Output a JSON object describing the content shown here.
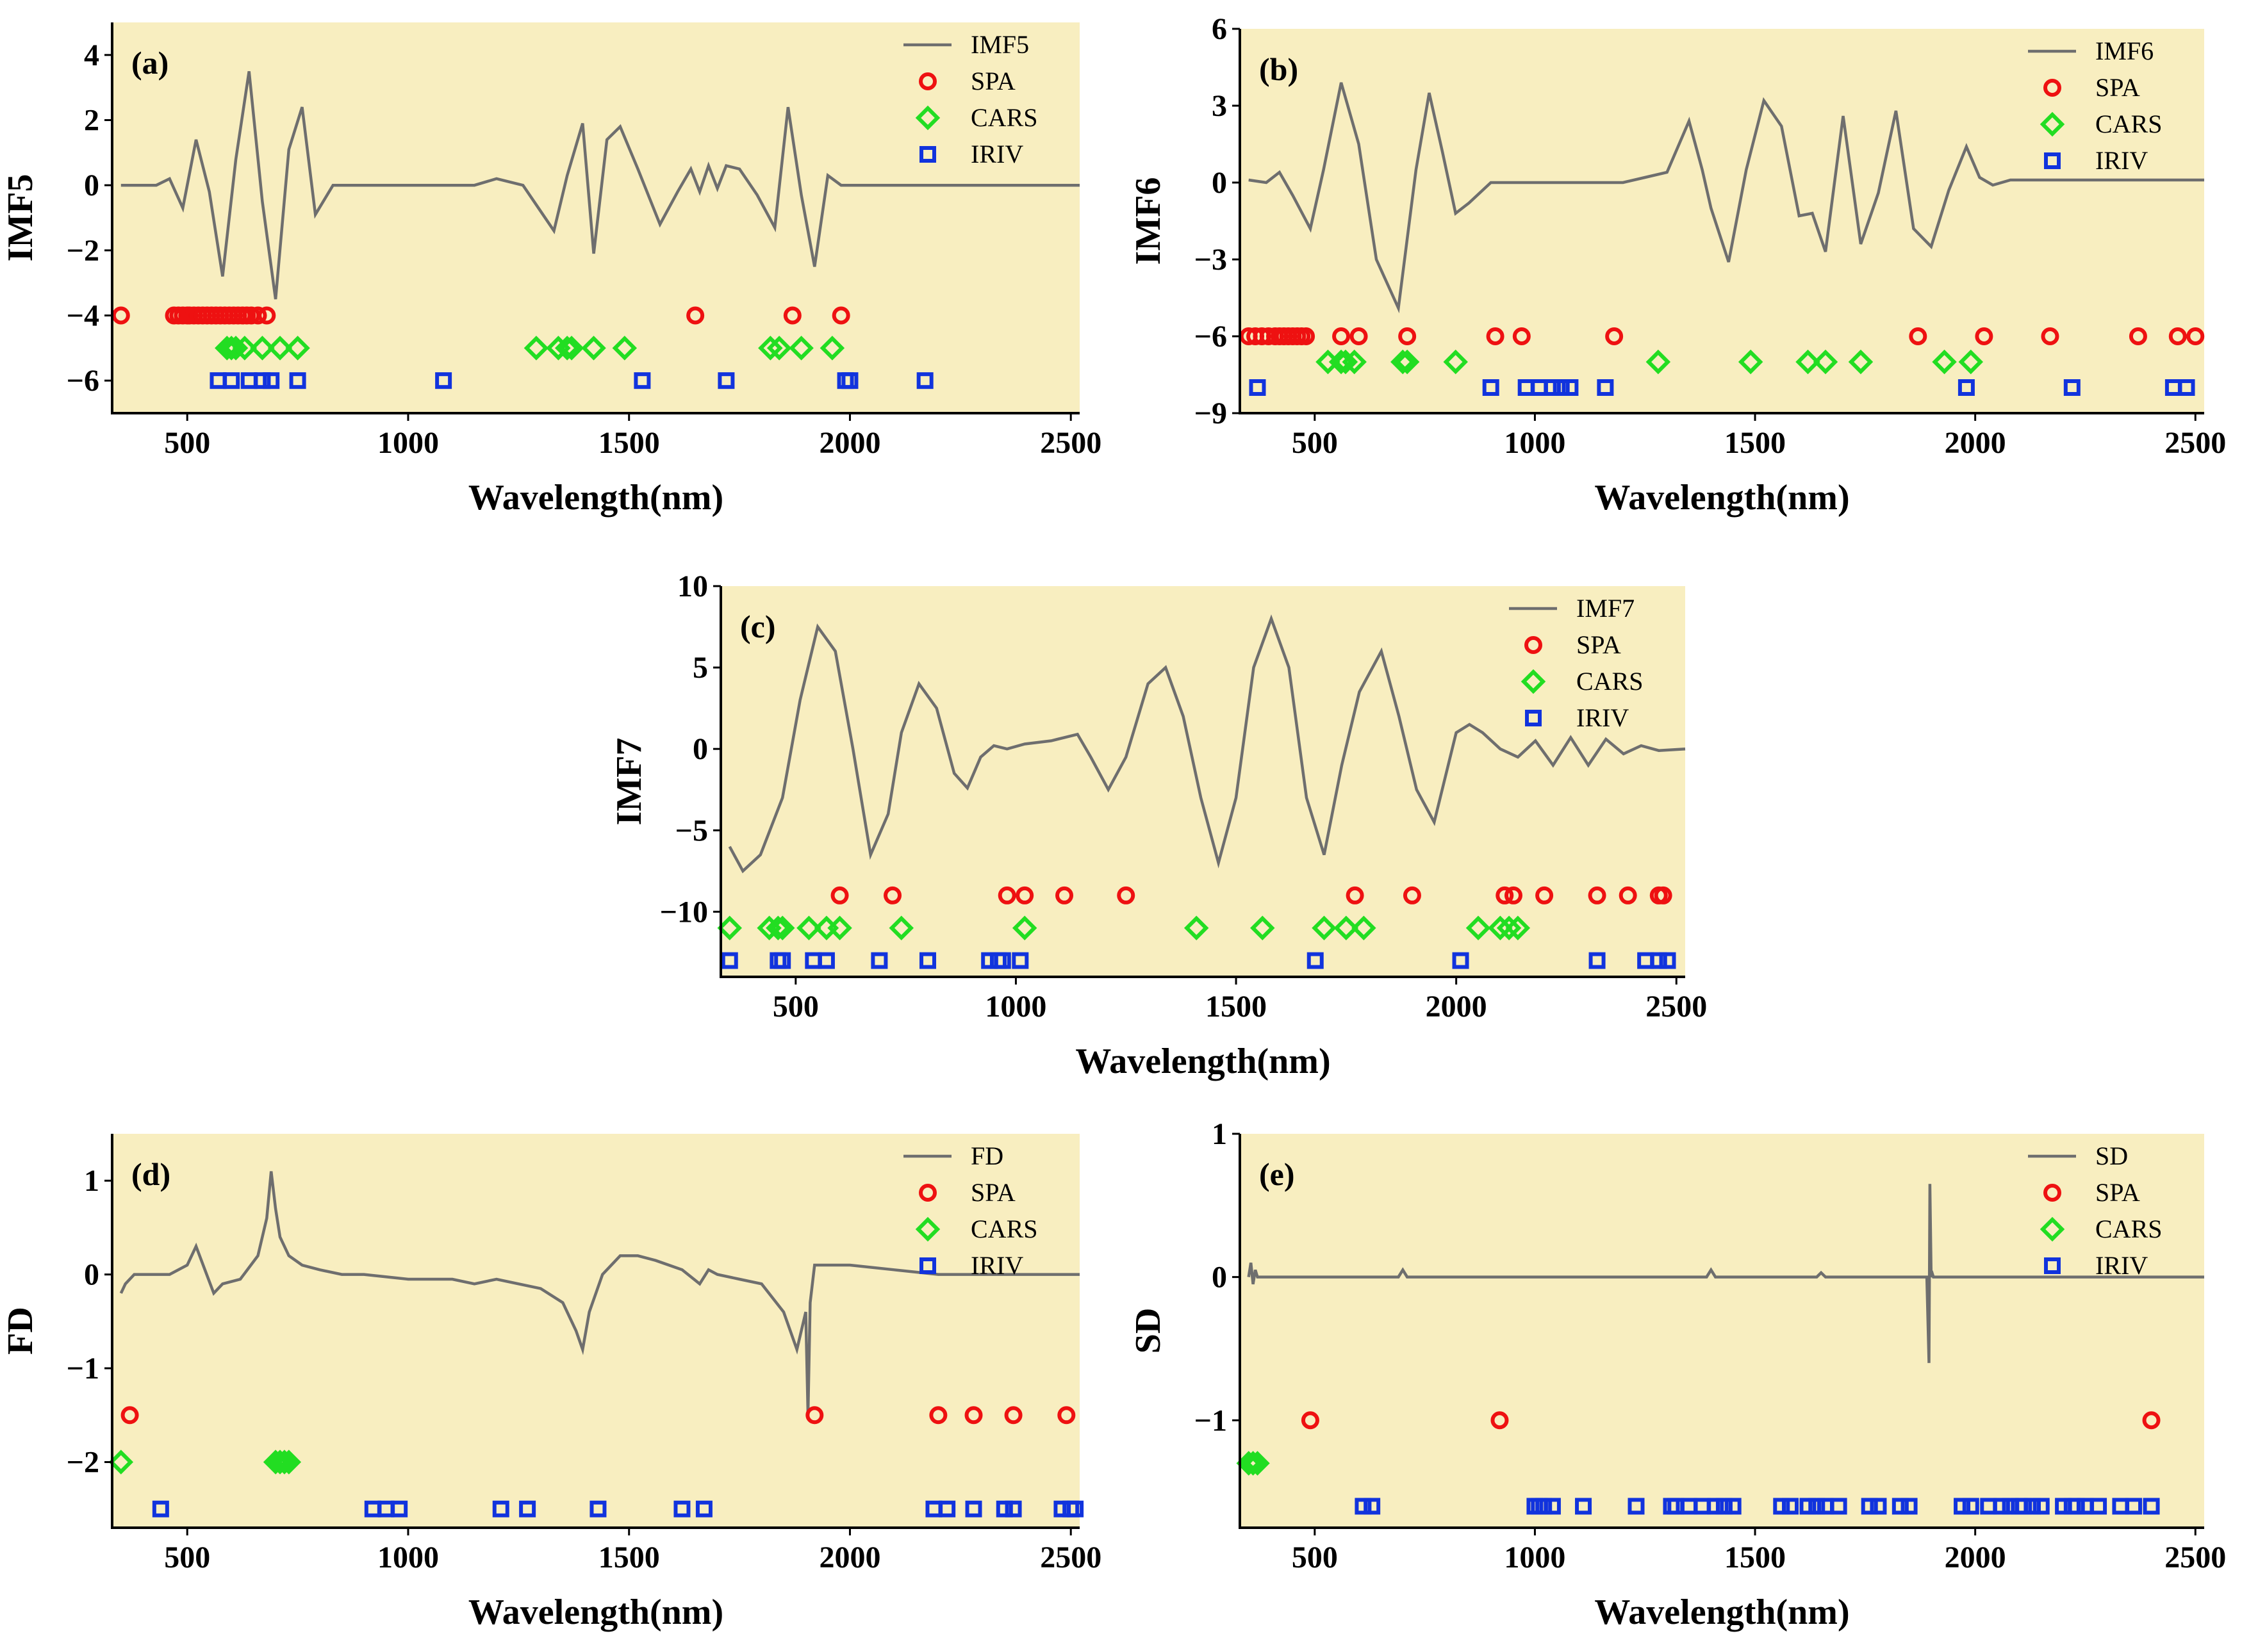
{
  "colors": {
    "background": "#f8eec0",
    "line": "#6e6e6e",
    "SPA": "#ee1111",
    "CARS": "#22dd22",
    "IRIV": "#1133dd"
  },
  "chart_data": [
    {
      "id": "a",
      "type": "line+scatter",
      "panel_label": "(a)",
      "ylabel": "IMF5",
      "xlabel": "Wavelength(nm)",
      "xlim": [
        330,
        2520
      ],
      "ylim": [
        -7,
        5
      ],
      "xticks": [
        500,
        1000,
        1500,
        2000,
        2500
      ],
      "yticks": [
        4,
        2,
        0,
        -2,
        -4,
        -6
      ],
      "legend": [
        "IMF5",
        "SPA",
        "CARS",
        "IRIV"
      ],
      "line": {
        "name": "IMF5",
        "x": [
          350,
          430,
          460,
          490,
          520,
          550,
          580,
          610,
          640,
          670,
          700,
          730,
          760,
          790,
          830,
          900,
          1000,
          1100,
          1150,
          1200,
          1260,
          1300,
          1330,
          1360,
          1395,
          1420,
          1450,
          1480,
          1520,
          1570,
          1610,
          1640,
          1660,
          1680,
          1700,
          1720,
          1750,
          1790,
          1830,
          1860,
          1890,
          1920,
          1950,
          1980,
          2050,
          2520
        ],
        "y": [
          0,
          0,
          0.2,
          -0.7,
          1.4,
          -0.2,
          -2.8,
          0.8,
          3.5,
          -0.5,
          -3.5,
          1.1,
          2.4,
          -0.9,
          0,
          0,
          0,
          0,
          0,
          0.2,
          0,
          -0.8,
          -1.4,
          0.3,
          1.9,
          -2.1,
          1.4,
          1.8,
          0.5,
          -1.2,
          -0.2,
          0.5,
          -0.2,
          0.6,
          -0.1,
          0.6,
          0.5,
          -0.3,
          -1.3,
          2.4,
          -0.3,
          -2.5,
          0.3,
          0,
          0,
          0
        ]
      },
      "SPA": {
        "y": -4,
        "x": [
          350,
          470,
          480,
          490,
          500,
          505,
          515,
          525,
          535,
          545,
          555,
          565,
          575,
          585,
          595,
          605,
          615,
          625,
          635,
          645,
          660,
          680,
          1650,
          1870,
          1980
        ]
      },
      "CARS": {
        "y": -5,
        "x": [
          590,
          600,
          610,
          630,
          670,
          710,
          750,
          1290,
          1340,
          1360,
          1370,
          1420,
          1490,
          1820,
          1840,
          1890,
          1960
        ]
      },
      "IRIV": {
        "y": -6,
        "x": [
          570,
          600,
          640,
          670,
          690,
          750,
          1080,
          1530,
          1720,
          1990,
          2000,
          2170
        ]
      }
    },
    {
      "id": "b",
      "type": "line+scatter",
      "panel_label": "(b)",
      "ylabel": "IMF6",
      "xlabel": "Wavelength(nm)",
      "xlim": [
        330,
        2520
      ],
      "ylim": [
        -9,
        6
      ],
      "xticks": [
        500,
        1000,
        1500,
        2000,
        2500
      ],
      "yticks": [
        6,
        3,
        0,
        -3,
        -6,
        -9
      ],
      "legend": [
        "IMF6",
        "SPA",
        "CARS",
        "IRIV"
      ],
      "line": {
        "name": "IMF6",
        "x": [
          350,
          390,
          420,
          450,
          490,
          520,
          560,
          600,
          640,
          690,
          730,
          760,
          790,
          820,
          850,
          900,
          1000,
          1100,
          1150,
          1200,
          1250,
          1300,
          1350,
          1380,
          1400,
          1440,
          1480,
          1520,
          1560,
          1600,
          1630,
          1660,
          1700,
          1740,
          1780,
          1820,
          1860,
          1900,
          1940,
          1980,
          2010,
          2040,
          2080,
          2520
        ],
        "y": [
          0.1,
          0,
          0.4,
          -0.5,
          -1.8,
          0.5,
          3.9,
          1.5,
          -3,
          -4.9,
          0.5,
          3.5,
          1.2,
          -1.2,
          -0.8,
          0,
          0,
          0,
          0,
          0,
          0.2,
          0.4,
          2.4,
          0.5,
          -1,
          -3.1,
          0.5,
          3.2,
          2.2,
          -1.3,
          -1.2,
          -2.7,
          2.6,
          -2.4,
          -0.4,
          2.8,
          -1.8,
          -2.5,
          -0.3,
          1.4,
          0.2,
          -0.1,
          0.1,
          0.1
        ]
      },
      "SPA": {
        "y": -6,
        "x": [
          350,
          365,
          380,
          395,
          410,
          420,
          430,
          440,
          450,
          460,
          470,
          480,
          560,
          600,
          710,
          910,
          970,
          1180,
          1870,
          2020,
          2170,
          2370,
          2460,
          2500
        ]
      },
      "CARS": {
        "y": -7,
        "x": [
          530,
          560,
          570,
          590,
          700,
          710,
          820,
          1280,
          1490,
          1620,
          1660,
          1740,
          1930,
          1990
        ]
      },
      "IRIV": {
        "y": -8,
        "x": [
          370,
          900,
          980,
          1010,
          1040,
          1060,
          1080,
          1160,
          1980,
          2220,
          2450,
          2480
        ]
      }
    },
    {
      "id": "c",
      "type": "line+scatter",
      "panel_label": "(c)",
      "ylabel": "IMF7",
      "xlabel": "Wavelength(nm)",
      "xlim": [
        330,
        2520
      ],
      "ylim": [
        -14,
        10
      ],
      "xticks": [
        500,
        1000,
        1500,
        2000,
        2500
      ],
      "yticks": [
        10,
        5,
        0,
        -5,
        -10
      ],
      "legend": [
        "IMF7",
        "SPA",
        "CARS",
        "IRIV"
      ],
      "line": {
        "name": "IMF7",
        "x": [
          350,
          380,
          420,
          470,
          510,
          550,
          590,
          630,
          670,
          710,
          740,
          780,
          820,
          860,
          890,
          920,
          950,
          980,
          1020,
          1050,
          1080,
          1110,
          1140,
          1170,
          1210,
          1250,
          1300,
          1340,
          1380,
          1420,
          1460,
          1500,
          1540,
          1580,
          1620,
          1660,
          1700,
          1740,
          1780,
          1830,
          1870,
          1910,
          1950,
          2000,
          2030,
          2060,
          2100,
          2140,
          2180,
          2220,
          2260,
          2300,
          2340,
          2380,
          2420,
          2460,
          2520
        ],
        "y": [
          -6,
          -7.5,
          -6.5,
          -3,
          3,
          7.5,
          6,
          0,
          -6.5,
          -4,
          1,
          4,
          2.5,
          -1.5,
          -2.4,
          -0.5,
          0.2,
          0,
          0.3,
          0.4,
          0.5,
          0.7,
          0.9,
          -0.5,
          -2.5,
          -0.5,
          4,
          5,
          2,
          -3,
          -7,
          -3,
          5,
          8,
          5,
          -3,
          -6.5,
          -1,
          3.5,
          6,
          2,
          -2.5,
          -4.5,
          1,
          1.5,
          1,
          0,
          -0.5,
          0.5,
          -1,
          0.7,
          -1,
          0.6,
          -0.3,
          0.2,
          -0.1,
          0
        ]
      },
      "SPA": {
        "y": -9,
        "x": [
          600,
          720,
          980,
          1020,
          1110,
          1250,
          1770,
          1900,
          2110,
          2130,
          2200,
          2320,
          2390,
          2460,
          2470
        ]
      },
      "CARS": {
        "y": -11,
        "x": [
          350,
          440,
          460,
          470,
          530,
          570,
          600,
          740,
          1020,
          1410,
          1560,
          1700,
          1750,
          1790,
          2050,
          2100,
          2120,
          2140
        ]
      },
      "IRIV": {
        "y": -13,
        "x": [
          350,
          460,
          470,
          540,
          570,
          690,
          800,
          940,
          960,
          970,
          1010,
          1680,
          2010,
          2320,
          2430,
          2460,
          2480
        ]
      }
    },
    {
      "id": "d",
      "type": "line+scatter",
      "panel_label": "(d)",
      "ylabel": "FD",
      "xlabel": "Wavelength(nm)",
      "xlim": [
        330,
        2520
      ],
      "ylim": [
        -2.7,
        1.5
      ],
      "xticks": [
        500,
        1000,
        1500,
        2000,
        2500
      ],
      "yticks": [
        1,
        0,
        -1,
        -2
      ],
      "legend": [
        "FD",
        "SPA",
        "CARS",
        "IRIV"
      ],
      "line": {
        "name": "FD",
        "x": [
          350,
          360,
          380,
          420,
          460,
          500,
          520,
          540,
          560,
          580,
          620,
          660,
          680,
          690,
          700,
          710,
          730,
          760,
          800,
          850,
          900,
          1000,
          1100,
          1150,
          1200,
          1250,
          1300,
          1350,
          1380,
          1395,
          1410,
          1440,
          1480,
          1520,
          1560,
          1620,
          1660,
          1680,
          1700,
          1750,
          1800,
          1850,
          1880,
          1900,
          1905,
          1910,
          1920,
          1960,
          2000,
          2100,
          2200,
          2300,
          2400,
          2520
        ],
        "y": [
          -0.2,
          -0.1,
          0,
          0,
          0,
          0.1,
          0.3,
          0.05,
          -0.2,
          -0.1,
          -0.05,
          0.2,
          0.6,
          1.1,
          0.7,
          0.4,
          0.2,
          0.1,
          0.05,
          0,
          0,
          -0.05,
          -0.05,
          -0.1,
          -0.05,
          -0.1,
          -0.15,
          -0.3,
          -0.6,
          -0.8,
          -0.4,
          0,
          0.2,
          0.2,
          0.15,
          0.05,
          -0.1,
          0.05,
          0,
          -0.05,
          -0.1,
          -0.4,
          -0.8,
          -0.4,
          -1.5,
          -0.3,
          0.1,
          0.1,
          0.1,
          0.05,
          0,
          0,
          0,
          0
        ]
      },
      "SPA": {
        "y": -1.5,
        "x": [
          370,
          1920,
          2200,
          2280,
          2370,
          2490
        ]
      },
      "CARS": {
        "y": -2,
        "x": [
          350,
          700,
          710,
          720,
          730
        ]
      },
      "IRIV": {
        "y": -2.5,
        "x": [
          440,
          920,
          950,
          980,
          1210,
          1270,
          1430,
          1620,
          1670,
          2190,
          2220,
          2280,
          2350,
          2370,
          2480,
          2500,
          2510
        ]
      }
    },
    {
      "id": "e",
      "type": "line+scatter",
      "panel_label": "(e)",
      "ylabel": "SD",
      "xlabel": "Wavelength(nm)",
      "xlim": [
        330,
        2520
      ],
      "ylim": [
        -1.75,
        1
      ],
      "xticks": [
        500,
        1000,
        1500,
        2000,
        2500
      ],
      "yticks": [
        1,
        0,
        -1
      ],
      "legend": [
        "SD",
        "SPA",
        "CARS",
        "IRIV"
      ],
      "line": {
        "name": "SD",
        "x": [
          350,
          355,
          360,
          365,
          370,
          400,
          500,
          600,
          690,
          700,
          710,
          800,
          900,
          1000,
          1100,
          1200,
          1300,
          1350,
          1390,
          1400,
          1410,
          1500,
          1600,
          1640,
          1650,
          1660,
          1700,
          1800,
          1890,
          1895,
          1897,
          1900,
          1903,
          1905,
          1910,
          1920,
          2000,
          2100,
          2200,
          2300,
          2400,
          2520
        ],
        "y": [
          0,
          0.1,
          -0.05,
          0.05,
          0,
          0,
          0,
          0,
          0,
          0.05,
          0,
          0,
          0,
          0,
          0,
          0,
          0,
          0,
          0,
          0.05,
          0,
          0,
          0,
          0,
          0.03,
          0,
          0,
          0,
          0,
          -0.6,
          0.65,
          0,
          0.02,
          0,
          0,
          0,
          0,
          0,
          0,
          0,
          0,
          0
        ]
      },
      "SPA": {
        "y": -1,
        "x": [
          490,
          920,
          2400
        ]
      },
      "CARS": {
        "y": -1.3,
        "x": [
          350,
          360,
          370
        ]
      },
      "IRIV": {
        "y": -1.6,
        "x": [
          610,
          630,
          1000,
          1010,
          1020,
          1040,
          1110,
          1230,
          1310,
          1320,
          1350,
          1380,
          1410,
          1430,
          1450,
          1560,
          1580,
          1620,
          1640,
          1660,
          1690,
          1760,
          1780,
          1830,
          1850,
          1970,
          1990,
          2030,
          2060,
          2080,
          2100,
          2110,
          2130,
          2150,
          2200,
          2220,
          2230,
          2250,
          2280,
          2330,
          2360,
          2400
        ]
      }
    }
  ]
}
